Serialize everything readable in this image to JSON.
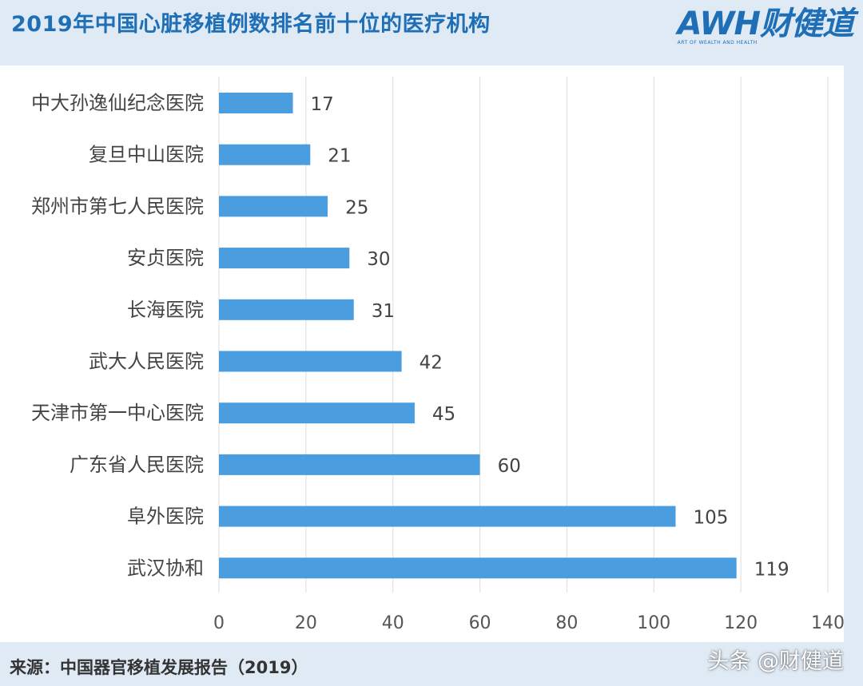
{
  "header": {
    "title": "2019年中国心脏移植例数排名前十位的医疗机构"
  },
  "logo": {
    "text": "AWH财健道",
    "subtitle": "ART OF WEALTH AND HEALTH"
  },
  "footer": {
    "source": "来源：中国器官移植发展报告（2019）",
    "watermark": "头条 @财健道"
  },
  "colors": {
    "bar": "#4a9ee0",
    "title": "#1f6fb7",
    "background": "#dfeaf5"
  },
  "chart_data": {
    "type": "bar",
    "orientation": "horizontal",
    "categories": [
      "中大孙逸仙纪念医院",
      "复旦中山医院",
      "郑州市第七人民医院",
      "安贞医院",
      "长海医院",
      "武大人民医院",
      "天津市第一中心医院",
      "广东省人民医院",
      "阜外医院",
      "武汉协和"
    ],
    "values": [
      17,
      21,
      25,
      30,
      31,
      42,
      45,
      60,
      105,
      119
    ],
    "value_labels": [
      "17",
      "21",
      "25",
      "30",
      "31",
      "42",
      "45",
      "60",
      "105",
      "119"
    ],
    "xlim": [
      0,
      140
    ],
    "xticks": [
      "0",
      "20",
      "40",
      "60",
      "80",
      "100",
      "120",
      "140"
    ],
    "grid": "vertical",
    "xlabel": "",
    "ylabel": ""
  }
}
